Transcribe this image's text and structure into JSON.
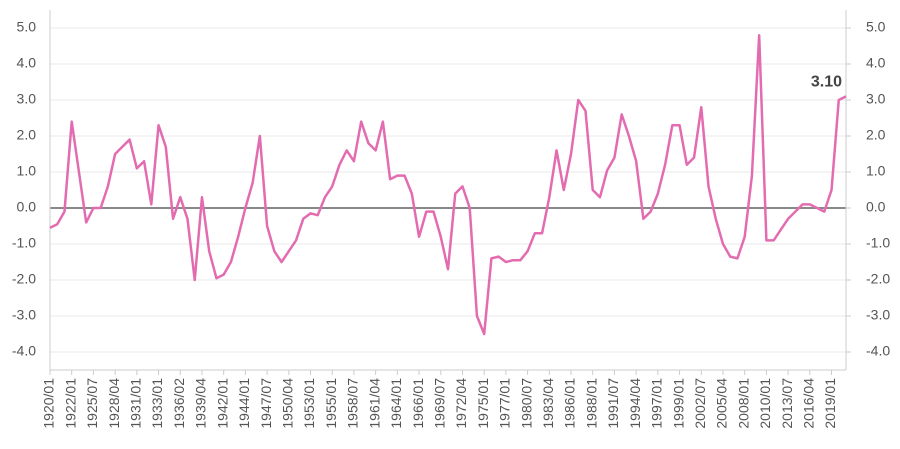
{
  "chart_data": {
    "type": "line",
    "categories": [
      "1920/01",
      null,
      null,
      "1922/01",
      null,
      null,
      "1925/07",
      null,
      null,
      "1928/04",
      null,
      null,
      "1931/01",
      null,
      null,
      "1933/01",
      null,
      null,
      "1936/02",
      null,
      null,
      "1939/04",
      null,
      null,
      "1942/01",
      null,
      null,
      "1944/01",
      null,
      null,
      "1947/07",
      null,
      null,
      "1950/04",
      null,
      null,
      "1953/01",
      null,
      null,
      "1955/01",
      null,
      null,
      "1958/07",
      null,
      null,
      "1961/04",
      null,
      null,
      "1964/01",
      null,
      null,
      "1966/01",
      null,
      null,
      "1969/07",
      null,
      null,
      "1972/04",
      null,
      null,
      "1975/01",
      null,
      null,
      "1977/01",
      null,
      null,
      "1980/07",
      null,
      null,
      "1983/04",
      null,
      null,
      "1986/01",
      null,
      null,
      "1988/01",
      null,
      null,
      "1991/07",
      null,
      null,
      "1994/04",
      null,
      null,
      "1997/01",
      null,
      null,
      "1999/01",
      null,
      null,
      "2002/07",
      null,
      null,
      "2005/04",
      null,
      null,
      "2008/01",
      null,
      null,
      "2010/01",
      null,
      null,
      "2013/07",
      null,
      null,
      "2016/04",
      null,
      null,
      "2019/01",
      null,
      null
    ],
    "series": [
      {
        "color": "#e36cb0",
        "values": [
          -0.55,
          -0.45,
          -0.1,
          2.4,
          1.0,
          -0.4,
          0.0,
          0.0,
          0.6,
          1.5,
          1.7,
          1.9,
          1.1,
          1.3,
          0.1,
          2.3,
          1.7,
          -0.3,
          0.3,
          -0.3,
          -2.0,
          0.3,
          -1.2,
          -1.95,
          -1.85,
          -1.5,
          -0.8,
          0.0,
          0.7,
          2.0,
          -0.5,
          -1.2,
          -1.5,
          -1.2,
          -0.9,
          -0.3,
          -0.15,
          -0.2,
          0.3,
          0.6,
          1.2,
          1.6,
          1.3,
          2.4,
          1.8,
          1.6,
          2.4,
          0.8,
          0.9,
          0.9,
          0.4,
          -0.8,
          -0.1,
          -0.1,
          -0.8,
          -1.7,
          0.4,
          0.6,
          0.0,
          -3.0,
          -3.5,
          -1.4,
          -1.35,
          -1.5,
          -1.45,
          -1.45,
          -1.2,
          -0.7,
          -0.7,
          0.3,
          1.6,
          0.5,
          1.5,
          3.0,
          2.7,
          0.5,
          0.3,
          1.05,
          1.4,
          2.6,
          2.0,
          1.3,
          -0.3,
          -0.1,
          0.4,
          1.2,
          2.3,
          2.3,
          1.2,
          1.4,
          2.8,
          0.6,
          -0.3,
          -1.0,
          -1.35,
          -1.4,
          -0.8,
          0.9,
          4.8,
          -0.9,
          -0.9,
          -0.6,
          -0.3,
          -0.1,
          0.1,
          0.1,
          0.0,
          -0.1,
          0.5,
          3.0,
          3.1
        ],
        "value_labels": [
          null,
          null,
          null,
          null,
          null,
          null,
          null,
          null,
          null,
          null,
          null,
          null,
          null,
          null,
          null,
          null,
          null,
          null,
          null,
          null,
          null,
          null,
          null,
          null,
          null,
          null,
          null,
          null,
          null,
          null,
          null,
          null,
          null,
          null,
          null,
          null,
          null,
          null,
          null,
          null,
          null,
          null,
          null,
          null,
          null,
          null,
          null,
          null,
          null,
          null,
          null,
          null,
          null,
          null,
          null,
          null,
          null,
          null,
          null,
          null,
          null,
          null,
          null,
          null,
          null,
          null,
          null,
          null,
          null,
          null,
          null,
          null,
          null,
          null,
          null,
          null,
          null,
          null,
          null,
          null,
          null,
          null,
          null,
          null,
          null,
          null,
          null,
          null,
          null,
          null,
          null,
          null,
          null,
          null,
          null,
          null,
          null,
          null,
          null,
          null,
          null,
          null,
          null,
          null,
          null,
          null,
          null,
          null,
          null,
          null,
          "3.10"
        ]
      }
    ],
    "ylim": [
      -4.5,
      5.5
    ],
    "yticks": [
      {
        "value": -4,
        "label": "-4.0"
      },
      {
        "value": -3,
        "label": "-3.0"
      },
      {
        "value": -2,
        "label": "-2.0"
      },
      {
        "value": -1,
        "label": "-1.0"
      },
      {
        "value": 0,
        "label": "0.0"
      },
      {
        "value": 1,
        "label": "1.0"
      },
      {
        "value": 2,
        "label": "2.0"
      },
      {
        "value": 3,
        "label": "3.0"
      },
      {
        "value": 4,
        "label": "4.0"
      },
      {
        "value": 5,
        "label": "5.0"
      }
    ],
    "y2lim": [
      -4.5,
      5.5
    ],
    "y2ticks": [
      {
        "value": -4,
        "label": "-4.0"
      },
      {
        "value": -3,
        "label": "-3.0"
      },
      {
        "value": -2,
        "label": "-2.0"
      },
      {
        "value": -1,
        "label": "-1.0"
      },
      {
        "value": 0,
        "label": "0.0"
      },
      {
        "value": 1,
        "label": "1.0"
      },
      {
        "value": 2,
        "label": "2.0"
      },
      {
        "value": 3,
        "label": "3.0"
      },
      {
        "value": 4,
        "label": "4.0"
      },
      {
        "value": 5,
        "label": "5.0"
      }
    ],
    "grid": true
  }
}
